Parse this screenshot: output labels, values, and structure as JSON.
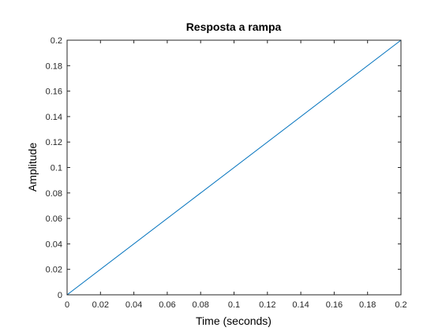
{
  "chart_data": {
    "type": "line",
    "title": "Resposta a rampa",
    "xlabel": "Time (seconds)",
    "ylabel": "Amplitude",
    "xlim": [
      0,
      0.2
    ],
    "ylim": [
      0,
      0.2
    ],
    "xticks": [
      "0",
      "0.02",
      "0.04",
      "0.06",
      "0.08",
      "0.1",
      "0.12",
      "0.14",
      "0.16",
      "0.18",
      "0.2"
    ],
    "yticks": [
      "0",
      "0.02",
      "0.04",
      "0.06",
      "0.08",
      "0.1",
      "0.12",
      "0.14",
      "0.16",
      "0.18",
      "0.2"
    ],
    "grid": false,
    "series": [
      {
        "x": [
          0,
          0.2
        ],
        "y": [
          0,
          0.2
        ],
        "color": "#0072BD"
      }
    ]
  }
}
